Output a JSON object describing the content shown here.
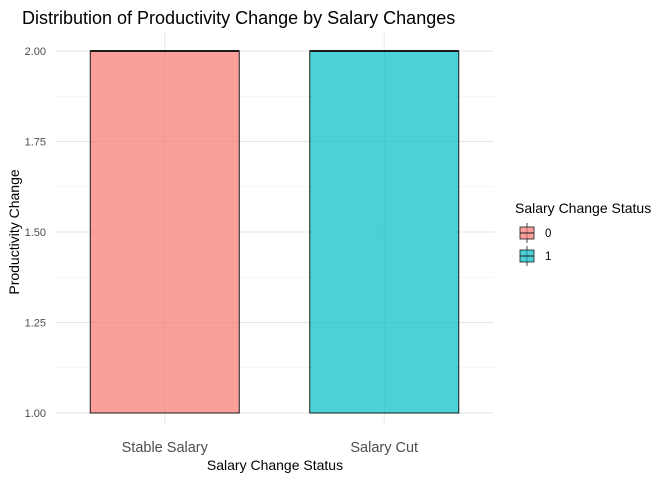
{
  "chart_data": {
    "type": "boxplot",
    "title": "Distribution of Productivity Change by Salary Changes",
    "xlabel": "Salary Change Status",
    "ylabel": "Productivity Change",
    "categories": [
      "Stable Salary",
      "Salary Cut"
    ],
    "ylim": [
      1.0,
      2.0
    ],
    "yticks": [
      "1.00",
      "1.25",
      "1.50",
      "1.75",
      "2.00"
    ],
    "series": [
      {
        "name": "0",
        "category": "Stable Salary",
        "min": 1.0,
        "q1": 1.0,
        "median": 2.0,
        "q3": 2.0,
        "max": 2.0,
        "color": "#F8766D"
      },
      {
        "name": "1",
        "category": "Salary Cut",
        "min": 1.0,
        "q1": 1.0,
        "median": 2.0,
        "q3": 2.0,
        "max": 2.0,
        "color": "#00BFC4"
      }
    ],
    "grid": true,
    "legend": {
      "title": "Salary Change Status",
      "position": "right",
      "items": [
        "0",
        "1"
      ]
    }
  }
}
